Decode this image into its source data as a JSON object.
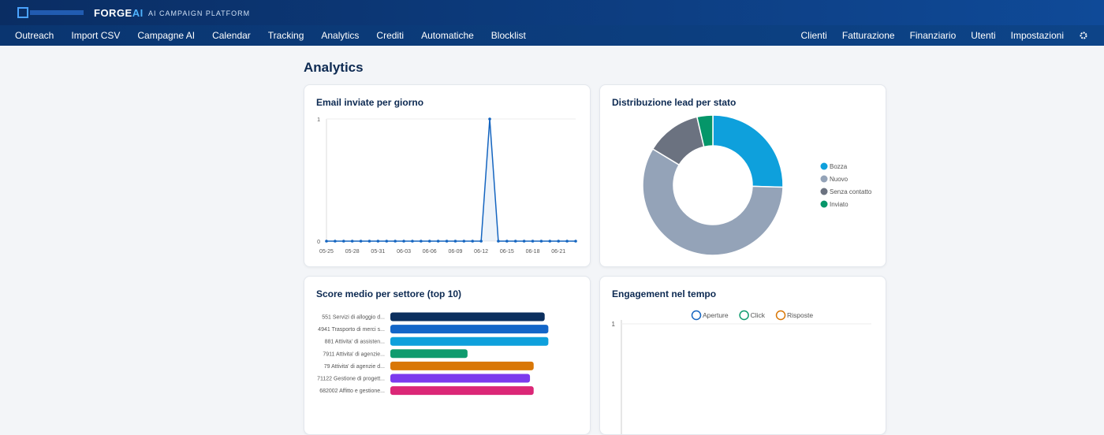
{
  "header": {
    "brand_main": "FORGE",
    "brand_accent": "AI",
    "subtitle": "AI CAMPAIGN PLATFORM"
  },
  "nav": {
    "left": [
      "Outreach",
      "Import CSV",
      "Campagne AI",
      "Calendar",
      "Tracking",
      "Analytics",
      "Crediti",
      "Automatiche",
      "Blocklist"
    ],
    "right": [
      "Clienti",
      "Fatturazione",
      "Finanziario",
      "Utenti",
      "Impostazioni"
    ]
  },
  "page_title": "Analytics",
  "chart_data": [
    {
      "type": "line",
      "title": "Email inviate per giorno",
      "color": "#1565c0",
      "categories": [
        "05-25",
        null,
        null,
        "05-28",
        null,
        null,
        "05-31",
        null,
        null,
        "06-03",
        null,
        null,
        "06-06",
        null,
        null,
        "06-09",
        null,
        null,
        "06-12",
        null,
        null,
        "06-15",
        null,
        null,
        "06-18",
        null,
        null,
        "06-21",
        null,
        null
      ],
      "values": [
        0,
        0,
        0,
        0,
        0,
        0,
        0,
        0,
        0,
        0,
        0,
        0,
        0,
        0,
        0,
        0,
        0,
        0,
        0,
        1,
        0,
        0,
        0,
        0,
        0,
        0,
        0,
        0,
        0,
        0
      ],
      "ylim": [
        0,
        1
      ],
      "yticks": [
        0,
        1
      ],
      "grid": true
    },
    {
      "type": "donut",
      "title": "Distribuzione lead per stato",
      "categories": [
        "Bozza",
        "Nuovo",
        "Senza contatto",
        "Inviato"
      ],
      "values": [
        14,
        32,
        7,
        2
      ],
      "colors": [
        "#0ea0dc",
        "#94a3b8",
        "#6b7280",
        "#059669"
      ],
      "legend": "right"
    },
    {
      "type": "hbar",
      "title": "Score medio per settore (top 10)",
      "categories": [
        "551 Servizi di alloggio d...",
        "4941 Trasporto di merci s...",
        "881 Attivita' di assisten...",
        "7911 Attivita' di agenzie...",
        "79 Attivita' di agenzie d...",
        "71122 Gestione di progett...",
        "682002 Affitto e gestione..."
      ],
      "values": [
        84,
        86,
        86,
        42,
        78,
        76,
        78
      ],
      "colors": [
        "#0b2f5e",
        "#1366c8",
        "#0ea0dc",
        "#0f9b6e",
        "#d97706",
        "#7c3aed",
        "#db2777"
      ],
      "xlim": [
        0,
        100
      ]
    },
    {
      "type": "line",
      "title": "Engagement nel tempo",
      "series": [
        {
          "name": "Aperture",
          "color": "#1565c0"
        },
        {
          "name": "Click",
          "color": "#0f9b6e"
        },
        {
          "name": "Risposte",
          "color": "#d97706"
        }
      ],
      "ylim": [
        0,
        1
      ],
      "yticks": [
        1
      ],
      "grid": true,
      "legend": "top"
    }
  ]
}
